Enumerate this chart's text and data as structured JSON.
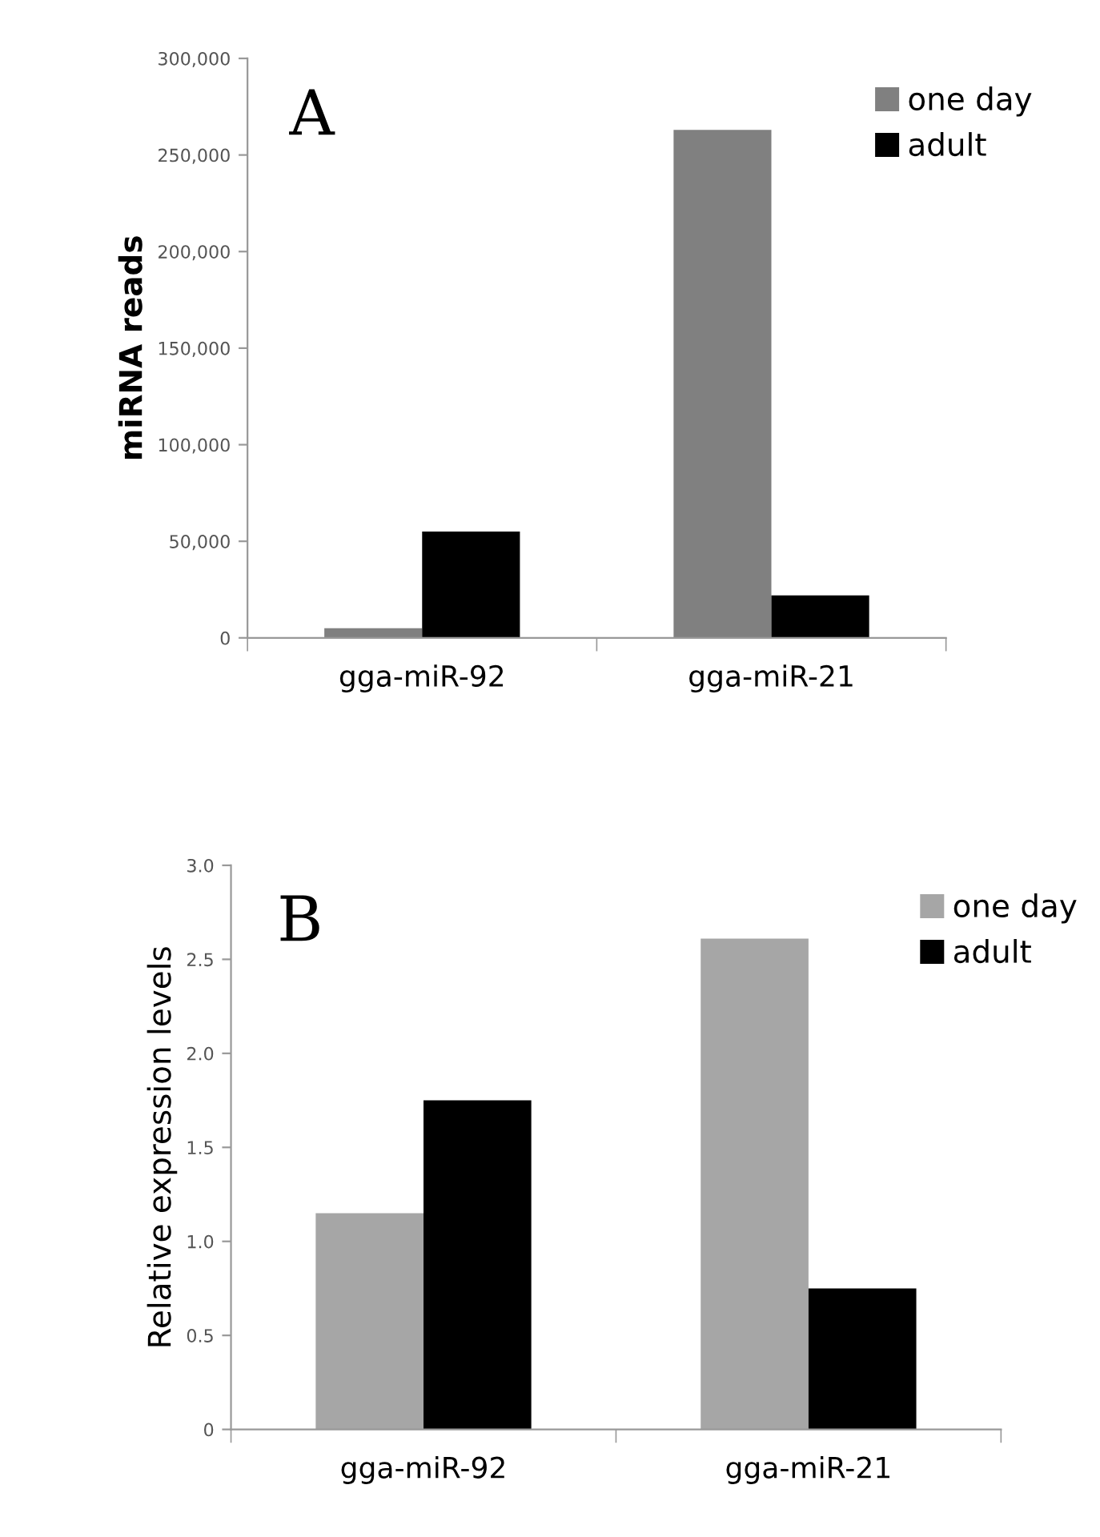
{
  "chart_data": [
    {
      "type": "bar",
      "ylabel": "miRNA reads",
      "categories": [
        "gga-miR-92",
        "gga-miR-21"
      ],
      "series": [
        {
          "name": "one day",
          "color": "#808080",
          "values": [
            5000,
            263000
          ]
        },
        {
          "name": "adult",
          "color": "#000000",
          "values": [
            55000,
            22000
          ]
        }
      ],
      "ylim": [
        0,
        300000
      ],
      "yticks": [
        {
          "value": 0,
          "label": "0"
        },
        {
          "value": 50000,
          "label": "50,000"
        },
        {
          "value": 100000,
          "label": "100,000"
        },
        {
          "value": 150000,
          "label": "150,000"
        },
        {
          "value": 200000,
          "label": "200,000"
        },
        {
          "value": 250000,
          "label": "250,000"
        },
        {
          "value": 300000,
          "label": "300,000"
        }
      ],
      "grid": false,
      "legend": "top right",
      "annotations": [
        "A"
      ]
    },
    {
      "type": "bar",
      "ylabel": "Relative expression levels",
      "categories": [
        "gga-miR-92",
        "gga-miR-21"
      ],
      "series": [
        {
          "name": "one day",
          "color": "#a6a6a6",
          "values": [
            1.15,
            2.61
          ]
        },
        {
          "name": "adult",
          "color": "#000000",
          "values": [
            1.75,
            0.75
          ]
        }
      ],
      "ylim": [
        0,
        3.0
      ],
      "yticks": [
        {
          "value": 0,
          "label": "0"
        },
        {
          "value": 0.5,
          "label": "0.5"
        },
        {
          "value": 1.0,
          "label": "1.0"
        },
        {
          "value": 1.5,
          "label": "1.5"
        },
        {
          "value": 2.0,
          "label": "2.0"
        },
        {
          "value": 2.5,
          "label": "2.5"
        },
        {
          "value": 3.0,
          "label": "3.0"
        }
      ],
      "grid": false,
      "legend": "top right",
      "annotations": [
        "B"
      ]
    }
  ]
}
